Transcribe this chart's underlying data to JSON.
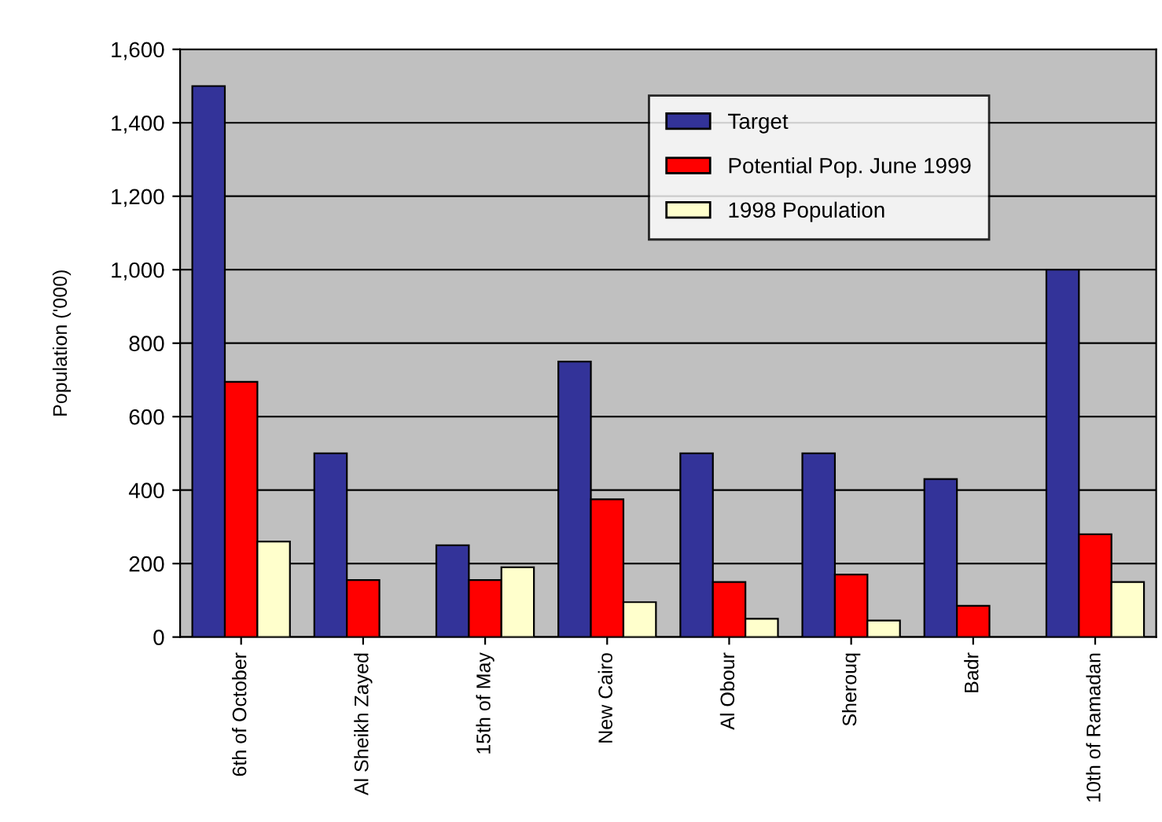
{
  "chart_data": {
    "type": "bar",
    "ylabel": "Population ('000)",
    "categories": [
      "6th of October",
      "Al Sheikh Zayed",
      "15th of May",
      "New Cairo",
      "Al Obour",
      "Sherouq",
      "Badr",
      "10th of Ramadan"
    ],
    "series": [
      {
        "name": "Target",
        "color": "#333399",
        "values": [
          1500,
          500,
          250,
          750,
          500,
          500,
          430,
          1000
        ]
      },
      {
        "name": "Potential Pop. June 1999",
        "color": "#ff0000",
        "values": [
          695,
          155,
          155,
          375,
          150,
          170,
          85,
          280
        ]
      },
      {
        "name": "1998 Population",
        "color": "#ffffcc",
        "values": [
          260,
          null,
          190,
          95,
          50,
          45,
          null,
          150
        ]
      }
    ],
    "ylim": [
      0,
      1600
    ],
    "yticks": [
      0,
      200,
      400,
      600,
      800,
      {
        "value": 1000,
        "label": "1,000"
      },
      {
        "value": 1200,
        "label": "1,200"
      },
      {
        "value": 1400,
        "label": "1,400"
      },
      {
        "value": 1600,
        "label": "1,600"
      }
    ],
    "grid": "y",
    "legend": "top right"
  }
}
